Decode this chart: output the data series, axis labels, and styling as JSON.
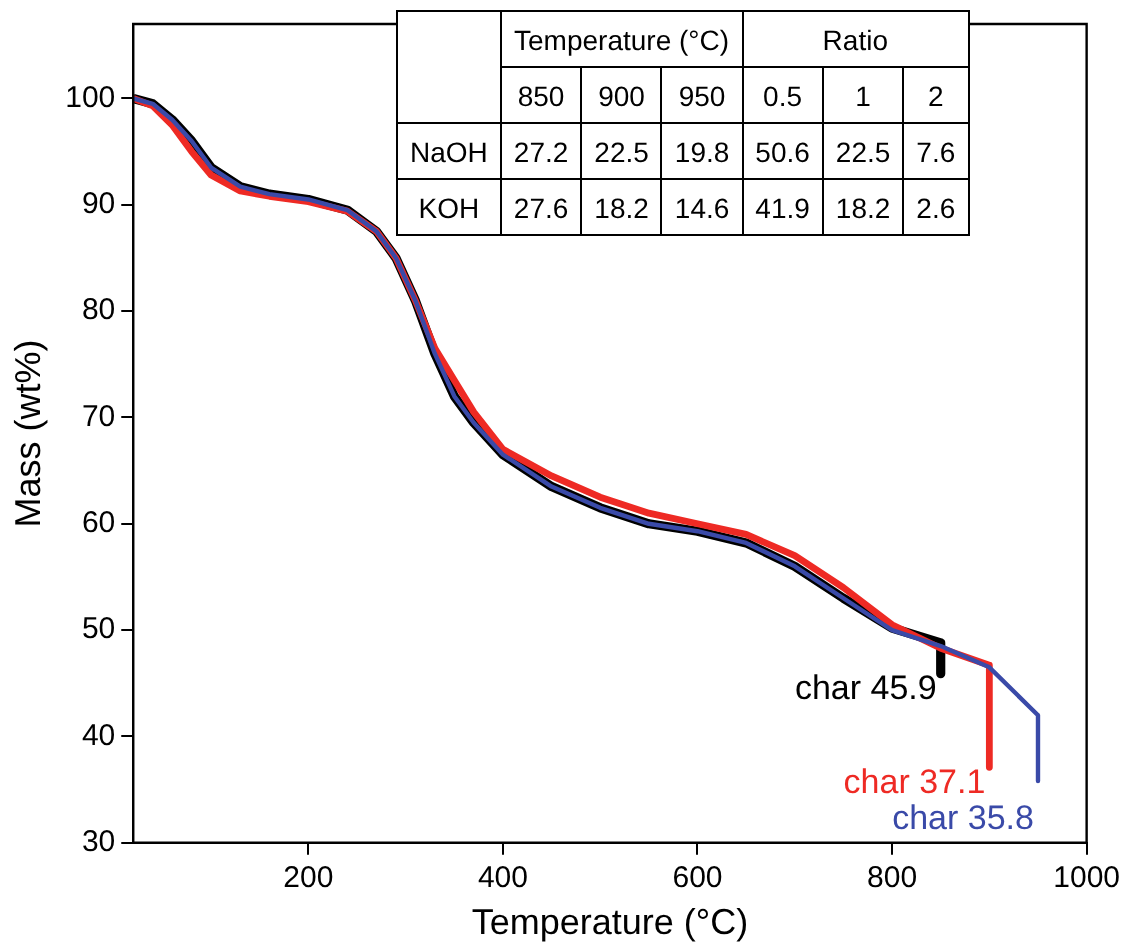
{
  "chart_data": [
    {
      "type": "line",
      "xlabel": "Temperature (°C)",
      "ylabel": "Mass (wt%)",
      "xlim": [
        20,
        1000
      ],
      "xticks": [
        200,
        400,
        600,
        800,
        1000
      ],
      "ylim": [
        30,
        107
      ],
      "yticks": [
        30,
        40,
        50,
        60,
        70,
        80,
        90,
        100
      ],
      "grid": false,
      "legend": false,
      "marker": "none",
      "line_style": "solid",
      "series": [
        {
          "color": "#000000",
          "x": [
            20,
            40,
            60,
            80,
            100,
            130,
            160,
            200,
            240,
            270,
            290,
            310,
            330,
            350,
            370,
            400,
            450,
            500,
            550,
            600,
            650,
            700,
            750,
            800,
            850,
            850
          ],
          "values": [
            100,
            99.5,
            98,
            96,
            93.5,
            91.7,
            91,
            90.5,
            89.5,
            87.5,
            85,
            81,
            76,
            72,
            69.5,
            66.5,
            63.5,
            61.5,
            60,
            59.3,
            58.2,
            56,
            53,
            50.2,
            48.8,
            45.9
          ]
        },
        {
          "color": "#ee2a24",
          "x": [
            20,
            40,
            60,
            80,
            100,
            130,
            160,
            200,
            240,
            270,
            290,
            310,
            330,
            350,
            370,
            400,
            450,
            500,
            550,
            600,
            650,
            700,
            750,
            800,
            850,
            900,
            900
          ],
          "values": [
            100,
            99.3,
            97.5,
            95,
            92.8,
            91.3,
            90.8,
            90.3,
            89.4,
            87.5,
            85,
            81,
            76.5,
            73.5,
            70.5,
            67,
            64.5,
            62.5,
            61,
            60,
            59,
            57,
            54,
            50.5,
            48.3,
            46.7,
            37.1
          ]
        },
        {
          "color": "#3a4aa8",
          "x": [
            20,
            40,
            60,
            80,
            100,
            130,
            160,
            200,
            240,
            270,
            290,
            310,
            330,
            350,
            370,
            400,
            450,
            500,
            550,
            600,
            650,
            700,
            750,
            800,
            850,
            900,
            950,
            950
          ],
          "values": [
            100,
            99.5,
            98,
            96,
            93.5,
            91.7,
            91,
            90.5,
            89.5,
            87.5,
            85,
            81,
            76,
            72,
            69.5,
            66.5,
            63.5,
            61.5,
            60,
            59.3,
            58.2,
            56,
            53,
            50,
            48.5,
            46.5,
            42,
            35.8
          ]
        }
      ],
      "annotations": [
        {
          "text": "char 45.9",
          "x": 850,
          "y": 45.9
        },
        {
          "text": "char 37.1",
          "x": 900,
          "y": 37.1
        },
        {
          "text": "char 35.8",
          "x": 950,
          "y": 35.8
        }
      ]
    },
    {
      "type": "heatmap",
      "categories": [
        "850",
        "900",
        "950",
        "0.5",
        "1",
        "2"
      ],
      "y_categories": [
        "NaOH",
        "KOH"
      ],
      "cells": [
        [
          27.2,
          22.5,
          19.8,
          50.6,
          22.5,
          7.6
        ],
        [
          27.6,
          18.2,
          14.6,
          41.9,
          18.2,
          2.6
        ]
      ],
      "data_labels": true,
      "annotations": [
        "Temperature (°C)",
        "Ratio"
      ]
    }
  ]
}
